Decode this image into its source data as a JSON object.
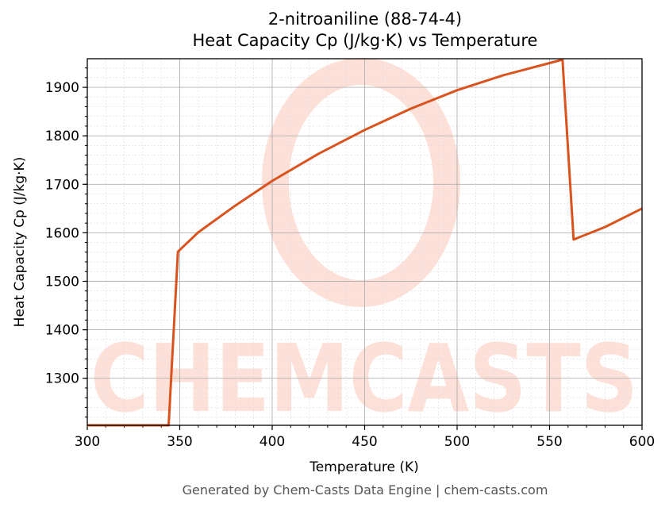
{
  "chart_data": {
    "type": "line",
    "title": "2-nitroaniline (88-74-4)",
    "subtitle": "Heat Capacity Cp (J/kg·K) vs Temperature",
    "xlabel": "Temperature (K)",
    "ylabel": "Heat Capacity Cp (J/kg·K)",
    "xlim": [
      300,
      600
    ],
    "ylim": [
      1203,
      1959
    ],
    "xticks": [
      300,
      350,
      400,
      450,
      500,
      550,
      600
    ],
    "yticks": [
      1300,
      1400,
      1500,
      1600,
      1700,
      1800,
      1900
    ],
    "grid": true,
    "legend": null,
    "series": [
      {
        "name": "Cp",
        "color": "#d9531e",
        "x": [
          300,
          344,
          349,
          360,
          380,
          400,
          425,
          450,
          475,
          500,
          525,
          550,
          557,
          563,
          580,
          600
        ],
        "y": [
          1203,
          1203,
          1561,
          1601,
          1656,
          1707,
          1763,
          1812,
          1856,
          1894,
          1925,
          1950,
          1957,
          1586,
          1612,
          1650
        ]
      }
    ]
  },
  "header": {
    "title": "2-nitroaniline (88-74-4)",
    "subtitle": "Heat Capacity Cp (J/kg·K) vs Temperature"
  },
  "watermark": "CHEMCASTS",
  "footer": "Generated by Chem-Casts Data Engine | chem-casts.com"
}
